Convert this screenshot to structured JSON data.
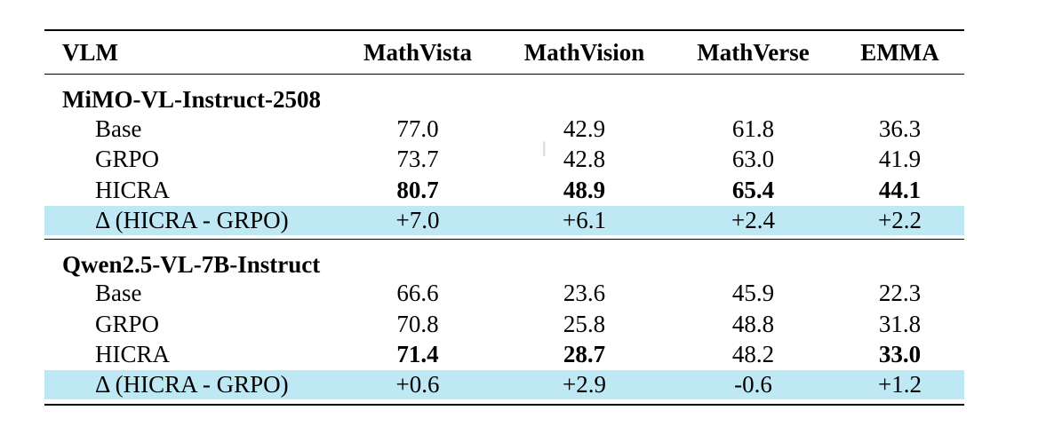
{
  "headers": [
    "VLM",
    "MathVista",
    "MathVision",
    "MathVerse",
    "EMMA"
  ],
  "groups": [
    {
      "name": "MiMO-VL-Instruct-2508",
      "rows": [
        {
          "label": "Base",
          "values": [
            "77.0",
            "42.9",
            "61.8",
            "36.3"
          ],
          "bold": [
            false,
            false,
            false,
            false
          ]
        },
        {
          "label": "GRPO",
          "values": [
            "73.7",
            "42.8",
            "63.0",
            "41.9"
          ],
          "bold": [
            false,
            false,
            false,
            false
          ]
        },
        {
          "label": "HICRA",
          "values": [
            "80.7",
            "48.9",
            "65.4",
            "44.1"
          ],
          "bold": [
            true,
            true,
            true,
            true
          ]
        }
      ],
      "delta": {
        "label": "Δ (HICRA - GRPO)",
        "values": [
          "+7.0",
          "+6.1",
          "+2.4",
          "+2.2"
        ]
      }
    },
    {
      "name": "Qwen2.5-VL-7B-Instruct",
      "rows": [
        {
          "label": "Base",
          "values": [
            "66.6",
            "23.6",
            "45.9",
            "22.3"
          ],
          "bold": [
            false,
            false,
            false,
            false
          ]
        },
        {
          "label": "GRPO",
          "values": [
            "70.8",
            "25.8",
            "48.8",
            "31.8"
          ],
          "bold": [
            false,
            false,
            false,
            false
          ]
        },
        {
          "label": "HICRA",
          "values": [
            "71.4",
            "28.7",
            "48.2",
            "33.0"
          ],
          "bold": [
            true,
            true,
            false,
            true
          ]
        }
      ],
      "delta": {
        "label": "Δ (HICRA - GRPO)",
        "values": [
          "+0.6",
          "+2.9",
          "-0.6",
          "+1.2"
        ]
      }
    }
  ],
  "colors": {
    "delta_highlight": "#bfe8f5"
  }
}
